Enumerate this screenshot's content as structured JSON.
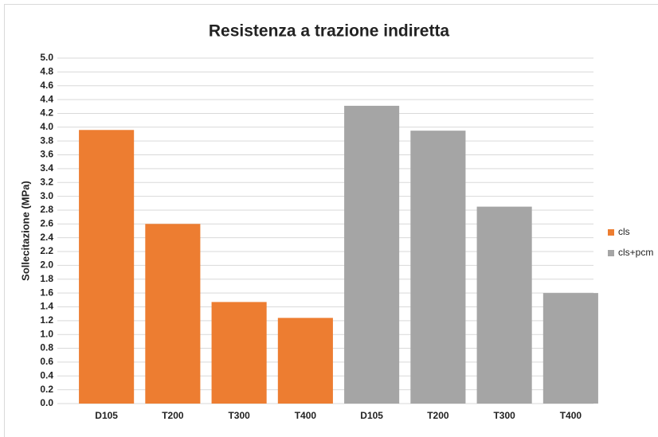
{
  "chart_data": {
    "type": "bar",
    "title": "Resistenza a trazione indiretta",
    "ylabel": "Sollecitazione (MPa)",
    "categories": [
      "D105",
      "T200",
      "T300",
      "T400",
      "D105",
      "T200",
      "T300",
      "T400"
    ],
    "series": [
      {
        "name": "cls",
        "color": "#ed7d31",
        "values": [
          3.96,
          2.6,
          1.47,
          1.24,
          null,
          null,
          null,
          null
        ]
      },
      {
        "name": "cls+pcm",
        "color": "#a5a5a5",
        "values": [
          null,
          null,
          null,
          null,
          4.31,
          3.95,
          2.85,
          1.6
        ]
      }
    ],
    "ylim": [
      0,
      5
    ],
    "yticks": [
      {
        "value": 0,
        "label": "0.0"
      },
      {
        "value": 0.2,
        "label": "0.2"
      },
      {
        "value": 0.4,
        "label": "0.4"
      },
      {
        "value": 0.6,
        "label": "0.6"
      },
      {
        "value": 0.8,
        "label": "0.8"
      },
      {
        "value": 1,
        "label": "1.0"
      },
      {
        "value": 1.2,
        "label": "1.2"
      },
      {
        "value": 1.4,
        "label": "1.4"
      },
      {
        "value": 1.6,
        "label": "1.6"
      },
      {
        "value": 1.8,
        "label": "1.8"
      },
      {
        "value": 2,
        "label": "2.0"
      },
      {
        "value": 2.2,
        "label": "2.2"
      },
      {
        "value": 2.4,
        "label": "2.4"
      },
      {
        "value": 2.6,
        "label": "2.6"
      },
      {
        "value": 2.8,
        "label": "2.8"
      },
      {
        "value": 3,
        "label": "3.0"
      },
      {
        "value": 3.2,
        "label": "3.2"
      },
      {
        "value": 3.4,
        "label": "3.4"
      },
      {
        "value": 3.6,
        "label": "3.6"
      },
      {
        "value": 3.8,
        "label": "3.8"
      },
      {
        "value": 4,
        "label": "4.0"
      },
      {
        "value": 4.2,
        "label": "4.2"
      },
      {
        "value": 4.4,
        "label": "4.4"
      },
      {
        "value": 4.6,
        "label": "4.6"
      },
      {
        "value": 4.8,
        "label": "4.8"
      },
      {
        "value": 5,
        "label": "5.0"
      }
    ],
    "grid": true,
    "legend": "right"
  }
}
